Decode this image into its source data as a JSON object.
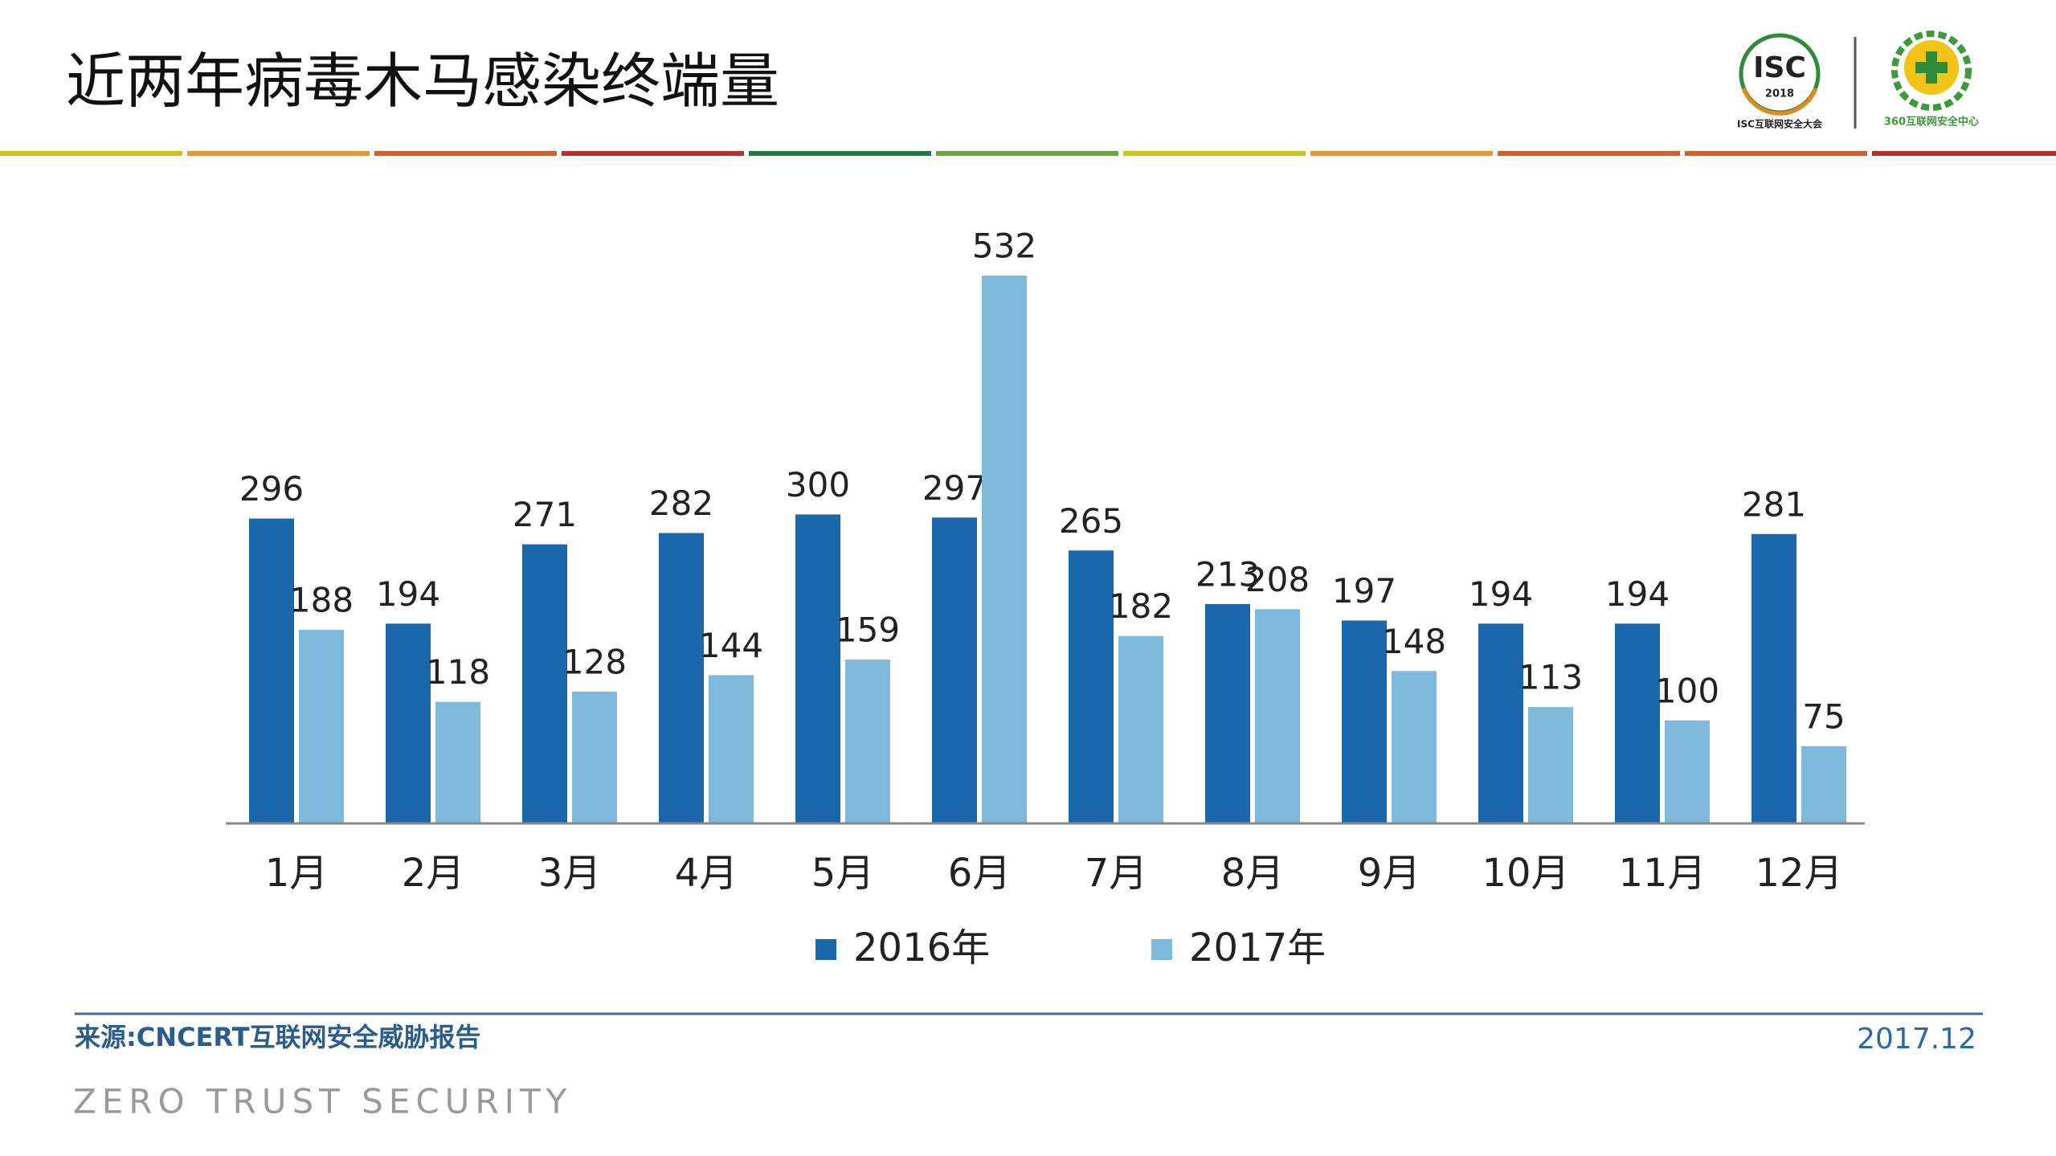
{
  "chart_data": {
    "type": "bar",
    "title": "近两年病毒木马感染终端量",
    "categories": [
      "1月",
      "2月",
      "3月",
      "4月",
      "5月",
      "6月",
      "7月",
      "8月",
      "9月",
      "10月",
      "11月",
      "12月"
    ],
    "series": [
      {
        "name": "2016年",
        "color": "#1a68ab",
        "values": [
          296,
          194,
          271,
          282,
          300,
          297,
          265,
          213,
          197,
          194,
          194,
          281
        ]
      },
      {
        "name": "2017年",
        "color": "#7cb9db",
        "values": [
          188,
          118,
          128,
          144,
          159,
          532,
          182,
          208,
          148,
          113,
          100,
          75
        ]
      }
    ],
    "legend": "bottom"
  },
  "slide": {
    "logo_isc": "ISC",
    "logo_year": "2018",
    "logo_isc_caption": "ISC互联网安全大会",
    "logo_360_caption": "360互联网安全中心",
    "source": "来源:CNCERT互联网安全威胁报告",
    "date": "2017.12",
    "tagline": "ZERO TRUST SECURITY"
  }
}
